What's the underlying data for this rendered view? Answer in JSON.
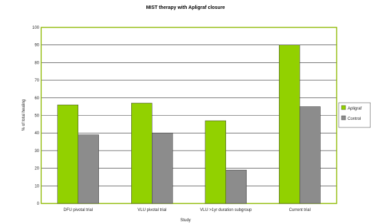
{
  "chart_data": {
    "type": "bar",
    "title": "MIST therapy with Apligraf closure",
    "xlabel": "Study",
    "ylabel": "% of total healing",
    "ylim": [
      0,
      100
    ],
    "yticks": [
      0,
      10,
      20,
      30,
      40,
      50,
      60,
      70,
      80,
      90,
      100
    ],
    "categories": [
      "DFU pivotal trial",
      "VLU pivotal trial",
      "VLU >1yr duration subgroup",
      "Current trial"
    ],
    "series": [
      {
        "name": "Apligraf",
        "values": [
          56,
          57,
          47,
          90
        ],
        "color": "#92d100"
      },
      {
        "name": "Control",
        "values": [
          39,
          40,
          19,
          55
        ],
        "color": "#8c8c8c"
      }
    ],
    "grid": true,
    "legend_position": "right",
    "colors": {
      "plot_border": "#8db800",
      "gridline": "#222222"
    }
  }
}
